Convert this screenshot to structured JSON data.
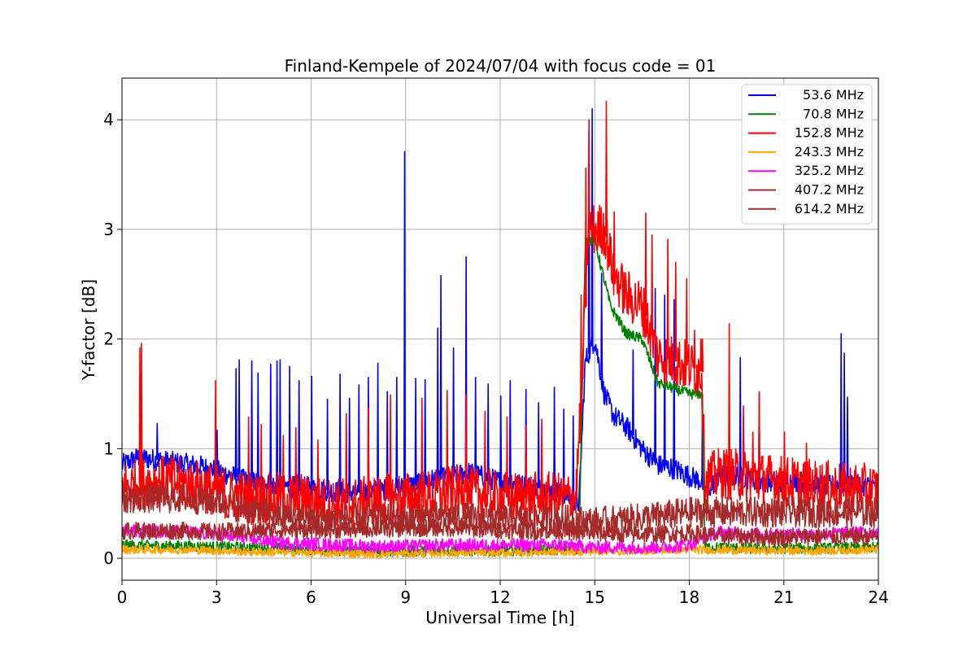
{
  "chart_data": {
    "type": "line",
    "title": "Finland-Kempele of 2024/07/04 with focus code = 01",
    "xlabel": "Universal Time [h]",
    "ylabel": "Y-factor [dB]",
    "xlim": [
      0,
      24
    ],
    "ylim": [
      -0.2,
      4.38
    ],
    "xticks": [
      0,
      3,
      6,
      9,
      12,
      15,
      18,
      21,
      24
    ],
    "yticks": [
      0,
      1,
      2,
      3,
      4
    ],
    "grid": true,
    "legend_position": "top-right",
    "series": [
      {
        "name": "53.6 MHz",
        "color": "#0000ff",
        "x": [
          0,
          0.5,
          1,
          1.5,
          2,
          2.5,
          3,
          3.5,
          4,
          4.5,
          5,
          5.5,
          6,
          6.5,
          7,
          7.5,
          8,
          8.5,
          9,
          9.5,
          10,
          10.5,
          11,
          11.5,
          12,
          12.5,
          13,
          13.5,
          14,
          14.5,
          14.7,
          15,
          15.3,
          15.6,
          16,
          16.5,
          17,
          17.5,
          18,
          18.4,
          18.5,
          19,
          19.5,
          20,
          20.5,
          21,
          21.5,
          22,
          22.5,
          23,
          23.5,
          24
        ],
        "y": [
          0.85,
          0.92,
          0.9,
          0.88,
          0.86,
          0.84,
          0.8,
          0.75,
          0.7,
          0.68,
          0.66,
          0.65,
          0.64,
          0.62,
          0.6,
          0.6,
          0.62,
          0.63,
          0.65,
          0.7,
          0.72,
          0.75,
          0.78,
          0.74,
          0.7,
          0.68,
          0.65,
          0.62,
          0.6,
          0.5,
          1.8,
          2.0,
          1.5,
          1.3,
          1.2,
          1.0,
          0.85,
          0.82,
          0.75,
          0.7,
          0.6,
          0.75,
          0.75,
          0.72,
          0.7,
          0.7,
          0.7,
          0.68,
          0.66,
          0.68,
          0.66,
          0.66
        ],
        "spikes": [
          [
            1.1,
            1.23
          ],
          [
            3.0,
            1.17
          ],
          [
            3.6,
            1.73
          ],
          [
            3.7,
            1.81
          ],
          [
            4.1,
            1.8
          ],
          [
            4.3,
            1.69
          ],
          [
            4.7,
            1.77
          ],
          [
            4.9,
            1.8
          ],
          [
            5.0,
            1.81
          ],
          [
            5.3,
            1.75
          ],
          [
            5.6,
            1.62
          ],
          [
            6.0,
            1.66
          ],
          [
            6.5,
            1.45
          ],
          [
            6.9,
            1.68
          ],
          [
            7.2,
            1.46
          ],
          [
            7.5,
            1.58
          ],
          [
            7.8,
            1.65
          ],
          [
            8.1,
            1.78
          ],
          [
            8.4,
            1.52
          ],
          [
            8.7,
            1.65
          ],
          [
            8.95,
            3.71
          ],
          [
            9.3,
            1.64
          ],
          [
            9.6,
            1.63
          ],
          [
            10.0,
            2.1
          ],
          [
            10.1,
            2.58
          ],
          [
            10.5,
            1.92
          ],
          [
            10.9,
            2.75
          ],
          [
            11.2,
            1.65
          ],
          [
            11.6,
            1.59
          ],
          [
            12.0,
            1.48
          ],
          [
            12.3,
            1.62
          ],
          [
            12.8,
            1.54
          ],
          [
            13.2,
            1.42
          ],
          [
            13.7,
            1.56
          ],
          [
            14.0,
            1.36
          ],
          [
            14.3,
            1.3
          ],
          [
            14.8,
            3.9
          ],
          [
            14.9,
            4.1
          ],
          [
            15.2,
            2.6
          ],
          [
            16.2,
            1.9
          ],
          [
            16.9,
            2.46
          ],
          [
            17.2,
            2.4
          ],
          [
            17.5,
            2.36
          ],
          [
            18.4,
            1.5
          ],
          [
            19.6,
            1.83
          ],
          [
            20.2,
            1.5
          ],
          [
            22.8,
            2.05
          ],
          [
            22.9,
            1.87
          ],
          [
            23.0,
            1.47
          ]
        ]
      },
      {
        "name": "70.8 MHz",
        "color": "#008000",
        "x": [
          0,
          2,
          4,
          6,
          8,
          10,
          12,
          14,
          14.5,
          14.7,
          15,
          15.5,
          16,
          16.5,
          17,
          17.5,
          18,
          18.4,
          18.5,
          20,
          22,
          24
        ],
        "y": [
          0.12,
          0.11,
          0.1,
          0.08,
          0.06,
          0.07,
          0.07,
          0.08,
          0.08,
          2.9,
          2.9,
          2.3,
          2.05,
          2.0,
          1.6,
          1.55,
          1.5,
          1.5,
          0.1,
          0.09,
          0.09,
          0.1
        ],
        "spikes": []
      },
      {
        "name": "152.8 MHz",
        "color": "#ff0000",
        "x": [
          0,
          0.5,
          1,
          1.5,
          2,
          2.5,
          3,
          3.5,
          4,
          4.5,
          5,
          5.5,
          6,
          6.5,
          7,
          7.5,
          8,
          8.5,
          9,
          9.5,
          10,
          10.5,
          11,
          11.5,
          12,
          12.5,
          13,
          13.5,
          14,
          14.4,
          14.6,
          14.8,
          15,
          15.3,
          15.6,
          16,
          16.5,
          17,
          17.5,
          18,
          18.4,
          18.5,
          19,
          19.5,
          20,
          20.5,
          21,
          21.5,
          22,
          22.5,
          23,
          23.5,
          24
        ],
        "y": [
          0.65,
          0.68,
          0.7,
          0.7,
          0.68,
          0.66,
          0.62,
          0.58,
          0.55,
          0.54,
          0.55,
          0.55,
          0.52,
          0.5,
          0.5,
          0.5,
          0.52,
          0.54,
          0.55,
          0.56,
          0.58,
          0.6,
          0.6,
          0.58,
          0.56,
          0.55,
          0.55,
          0.55,
          0.55,
          0.55,
          1.6,
          3.0,
          3.0,
          3.0,
          2.6,
          2.4,
          2.3,
          1.85,
          1.8,
          1.75,
          1.7,
          0.7,
          0.78,
          0.76,
          0.74,
          0.72,
          0.7,
          0.68,
          0.66,
          0.65,
          0.64,
          0.63,
          0.62
        ],
        "spikes": [
          [
            0.55,
            1.92
          ],
          [
            0.6,
            1.96
          ],
          [
            2.95,
            1.62
          ],
          [
            4.0,
            1.29
          ],
          [
            4.4,
            1.22
          ],
          [
            5.1,
            1.12
          ],
          [
            5.5,
            1.19
          ],
          [
            6.2,
            1.08
          ],
          [
            7.1,
            1.32
          ],
          [
            7.8,
            1.37
          ],
          [
            8.5,
            1.49
          ],
          [
            9.5,
            1.46
          ],
          [
            10.3,
            1.53
          ],
          [
            10.9,
            1.49
          ],
          [
            11.5,
            1.34
          ],
          [
            12.2,
            1.29
          ],
          [
            12.8,
            1.21
          ],
          [
            13.3,
            1.27
          ],
          [
            14.55,
            2.4
          ],
          [
            14.7,
            3.56
          ],
          [
            14.8,
            4.0
          ],
          [
            15.35,
            4.17
          ],
          [
            15.6,
            3.16
          ],
          [
            16.6,
            3.15
          ],
          [
            16.8,
            2.95
          ],
          [
            17.3,
            2.91
          ],
          [
            17.55,
            2.7
          ],
          [
            17.9,
            2.55
          ],
          [
            18.15,
            2.08
          ],
          [
            18.35,
            2.0
          ],
          [
            18.4,
            2.0
          ],
          [
            19.25,
            2.14
          ],
          [
            19.7,
            1.39
          ],
          [
            20.0,
            1.15
          ],
          [
            20.2,
            1.52
          ],
          [
            21.0,
            1.15
          ],
          [
            21.7,
            1.05
          ]
        ]
      },
      {
        "name": "243.3 MHz",
        "color": "#ffa500",
        "x": [
          0,
          2,
          4,
          6,
          8,
          10,
          12,
          14,
          16,
          18,
          20,
          22,
          24
        ],
        "y": [
          0.08,
          0.08,
          0.06,
          0.05,
          0.04,
          0.05,
          0.05,
          0.06,
          0.07,
          0.08,
          0.07,
          0.07,
          0.08
        ],
        "spikes": []
      },
      {
        "name": "325.2 MHz",
        "color": "#ff00ff",
        "x": [
          0,
          1,
          2,
          3,
          4,
          5,
          6,
          7,
          8,
          9,
          10,
          11,
          12,
          13,
          14,
          15,
          16,
          17,
          18,
          18.5,
          19,
          20,
          21,
          22,
          23,
          24
        ],
        "y": [
          0.25,
          0.25,
          0.24,
          0.22,
          0.18,
          0.14,
          0.13,
          0.12,
          0.11,
          0.11,
          0.12,
          0.12,
          0.12,
          0.12,
          0.12,
          0.1,
          0.1,
          0.1,
          0.12,
          0.2,
          0.24,
          0.22,
          0.22,
          0.22,
          0.23,
          0.24
        ],
        "spikes": []
      },
      {
        "name": "407.2 MHz",
        "color": "#a52a2a",
        "x": [
          0,
          1,
          2,
          3,
          4,
          5,
          6,
          7,
          8,
          9,
          10,
          11,
          12,
          13,
          14,
          15,
          16,
          17,
          18,
          19,
          20,
          21,
          22,
          23,
          24
        ],
        "y": [
          0.25,
          0.25,
          0.25,
          0.24,
          0.25,
          0.26,
          0.26,
          0.26,
          0.27,
          0.27,
          0.28,
          0.27,
          0.26,
          0.25,
          0.25,
          0.23,
          0.22,
          0.22,
          0.23,
          0.2,
          0.2,
          0.19,
          0.2,
          0.2,
          0.2
        ],
        "spikes": []
      },
      {
        "name": "614.2 MHz",
        "color": "#a52a2a",
        "x": [
          0,
          1,
          2,
          3,
          4,
          5,
          6,
          7,
          8,
          9,
          10,
          11,
          12,
          13,
          14,
          15,
          16,
          17,
          18,
          19,
          20,
          21,
          22,
          23,
          24
        ],
        "y": [
          0.55,
          0.55,
          0.55,
          0.52,
          0.45,
          0.38,
          0.36,
          0.36,
          0.36,
          0.37,
          0.38,
          0.37,
          0.36,
          0.35,
          0.35,
          0.33,
          0.35,
          0.38,
          0.42,
          0.42,
          0.42,
          0.42,
          0.42,
          0.42,
          0.42
        ],
        "spikes": []
      }
    ]
  }
}
